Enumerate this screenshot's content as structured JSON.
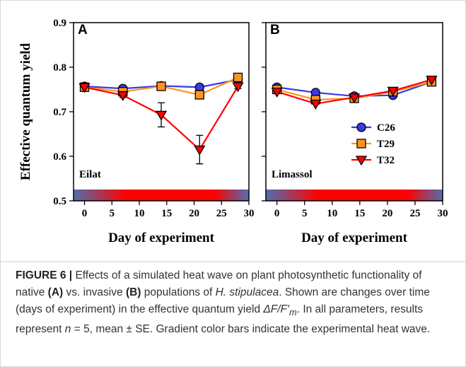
{
  "chart_data": [
    {
      "type": "line",
      "panel_label": "A",
      "annotation": "Eilat",
      "xlabel": "Day of experiment",
      "ylabel": "Effective quantum yield",
      "x": [
        0,
        7,
        14,
        21,
        28
      ],
      "xlim": [
        -2,
        30
      ],
      "xticks": [
        0,
        5,
        10,
        15,
        20,
        25,
        30
      ],
      "ylim": [
        0.5,
        0.9
      ],
      "yticks": [
        0.5,
        0.6,
        0.7,
        0.8,
        0.9
      ],
      "series": [
        {
          "color": "#3a3ae0",
          "marker": "circle",
          "values": [
            0.757,
            0.752,
            0.758,
            0.755,
            0.772
          ]
        },
        {
          "color": "#ff9420",
          "marker": "square",
          "values": [
            0.755,
            0.745,
            0.757,
            0.738,
            0.777
          ]
        },
        {
          "color": "#ff0000",
          "marker": "triangle-down",
          "values": [
            0.755,
            0.737,
            0.693,
            0.615,
            0.757
          ],
          "errors": [
            0.004,
            0.005,
            0.027,
            0.032,
            0.005
          ]
        }
      ]
    },
    {
      "type": "line",
      "panel_label": "B",
      "annotation": "Limassol",
      "xlabel": "Day of experiment",
      "legend": "right",
      "x": [
        0,
        7,
        14,
        21,
        28
      ],
      "xlim": [
        -2,
        30
      ],
      "xticks": [
        0,
        5,
        10,
        15,
        20,
        25,
        30
      ],
      "ylim": [
        0.5,
        0.9
      ],
      "yticks": [
        0.5,
        0.6,
        0.7,
        0.8,
        0.9
      ],
      "series": [
        {
          "name": "C26",
          "color": "#3a3ae0",
          "marker": "circle",
          "values": [
            0.755,
            0.743,
            0.735,
            0.737,
            0.767
          ]
        },
        {
          "name": "T29",
          "color": "#ff9420",
          "marker": "square",
          "values": [
            0.75,
            0.727,
            0.73,
            0.745,
            0.767
          ]
        },
        {
          "name": "T32",
          "color": "#ff0000",
          "marker": "triangle-down",
          "values": [
            0.745,
            0.718,
            0.732,
            0.747,
            0.772
          ]
        }
      ]
    }
  ],
  "caption": [
    "FIGURE 6 |",
    " Effects of a simulated heat wave on plant photosynthetic functionality of native ",
    "(A)",
    " vs. invasive ",
    "(B)",
    " populations of ",
    "H. stipulacea",
    ". Shown are changes over time (days of experiment) in the effective quantum yield ",
    "ΔF/F′",
    "m",
    ". In all parameters, results represent ",
    "n",
    " = 5, mean ± SE. Gradient color bars indicate the experimental heat wave."
  ]
}
